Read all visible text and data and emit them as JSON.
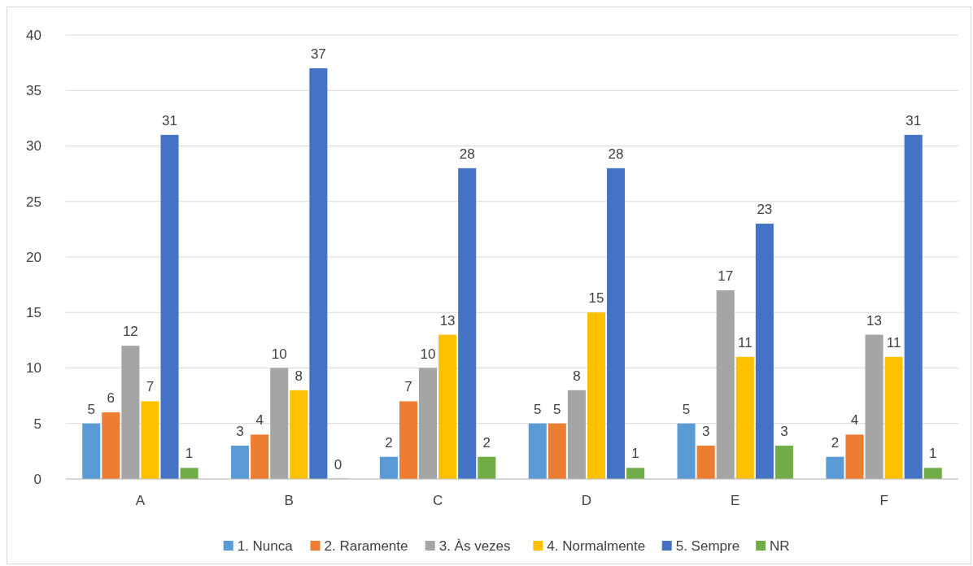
{
  "chart_data": {
    "type": "bar",
    "categories": [
      "A",
      "B",
      "C",
      "D",
      "E",
      "F"
    ],
    "series": [
      {
        "name": "1. Nunca",
        "color": "#5b9bd5",
        "values": [
          5,
          3,
          2,
          5,
          5,
          2
        ]
      },
      {
        "name": "2. Raramente",
        "color": "#ed7d31",
        "values": [
          6,
          4,
          7,
          5,
          3,
          4
        ]
      },
      {
        "name": "3. Às vezes",
        "color": "#a5a5a5",
        "values": [
          12,
          10,
          10,
          8,
          17,
          13
        ]
      },
      {
        "name": "4. Normalmente",
        "color": "#ffc000",
        "values": [
          7,
          8,
          13,
          15,
          11,
          11
        ]
      },
      {
        "name": "5. Sempre",
        "color": "#4472c4",
        "values": [
          31,
          37,
          28,
          28,
          23,
          31
        ]
      },
      {
        "name": "NR",
        "color": "#70ad47",
        "values": [
          1,
          0,
          2,
          1,
          3,
          1
        ]
      }
    ],
    "ylim": [
      0,
      40
    ],
    "yticks": [
      0,
      5,
      10,
      15,
      20,
      25,
      30,
      35,
      40
    ],
    "grid": "y",
    "legend": "bottom",
    "data_labels": true
  }
}
